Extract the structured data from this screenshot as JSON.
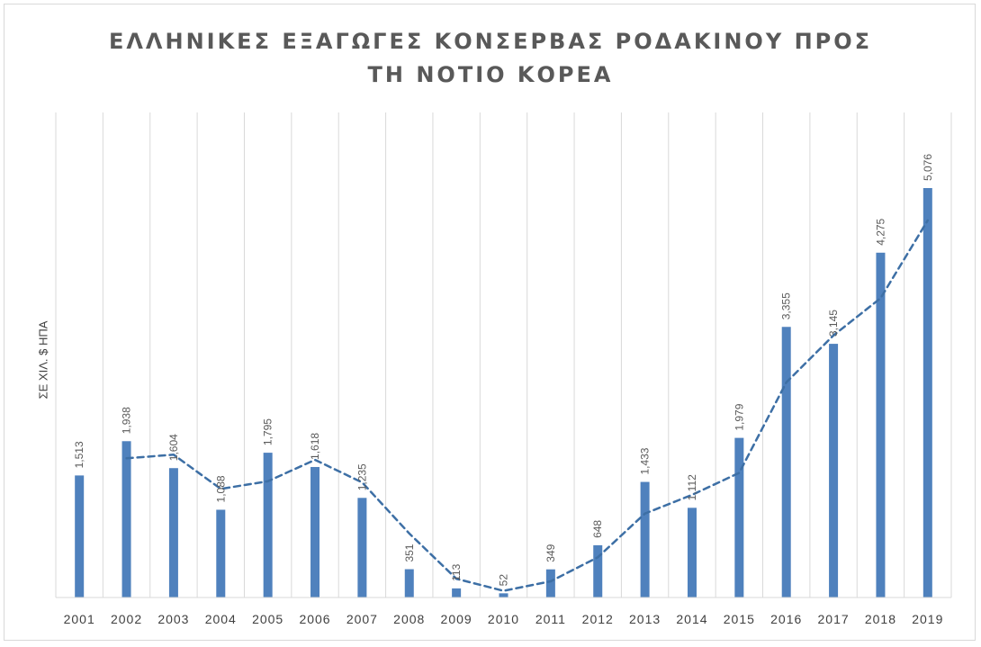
{
  "chart_data": {
    "type": "bar",
    "title_lines": [
      "ΕΛΛΗΝΙΚΕΣ ΕΞΑΓΩΓΕΣ ΚΟΝΣΕΡΒΑΣ ΡΟΔΑΚΙΝΟΥ ΠΡΟΣ",
      "ΤΗ ΝΟΤΙΟ ΚΟΡΕΑ"
    ],
    "ylabel": "ΣΕ ΧΙΛ. $ ΗΠΑ",
    "xlabel": "",
    "categories": [
      "2001",
      "2002",
      "2003",
      "2004",
      "2005",
      "2006",
      "2007",
      "2008",
      "2009",
      "2010",
      "2011",
      "2012",
      "2013",
      "2014",
      "2015",
      "2016",
      "2017",
      "2018",
      "2019"
    ],
    "values": [
      1513,
      1938,
      1604,
      1088,
      1795,
      1618,
      1235,
      351,
      113,
      52,
      349,
      648,
      1433,
      1112,
      1979,
      3355,
      3145,
      4275,
      5076
    ],
    "data_labels": [
      "1,513",
      "1,938",
      "1,604",
      "1,088",
      "1,795",
      "1,618",
      "1,235",
      "351",
      "113",
      "52",
      "349",
      "648",
      "1,433",
      "1,112",
      "1,979",
      "3,355",
      "3,145",
      "4,275",
      "5,076"
    ],
    "trendline": {
      "type": "2-period moving average",
      "style": "dashed"
    },
    "ylim": [
      0,
      6000
    ],
    "grid": "vertical",
    "legend": "none",
    "colors": {
      "bar": "#4f81bd",
      "trend": "#3d6fa5",
      "grid": "#d9d9d9",
      "text": "#595959"
    }
  }
}
